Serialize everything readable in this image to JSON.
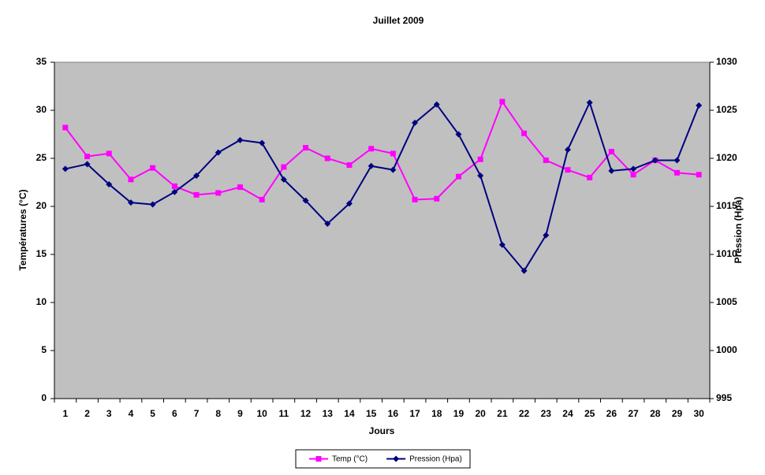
{
  "chart_data": {
    "type": "line",
    "title": "Juillet 2009",
    "x_label": "Jours",
    "y_label": "Températures (°C)",
    "y2_label": "Pression (Hpa)",
    "categories": [
      "1",
      "2",
      "3",
      "4",
      "5",
      "6",
      "7",
      "8",
      "9",
      "10",
      "11",
      "12",
      "13",
      "14",
      "15",
      "16",
      "17",
      "18",
      "19",
      "20",
      "21",
      "22",
      "23",
      "24",
      "25",
      "26",
      "27",
      "28",
      "29",
      "30"
    ],
    "ylim": [
      0,
      35
    ],
    "yticks": [
      0,
      5,
      10,
      15,
      20,
      25,
      30,
      35
    ],
    "y2lim": [
      995,
      1030
    ],
    "y2ticks": [
      995,
      1000,
      1005,
      1010,
      1015,
      1020,
      1025,
      1030
    ],
    "grid": false,
    "legend": "bottom",
    "plot_background": "#c0c0c0",
    "series": [
      {
        "name": "Temp (°C)",
        "color": "#ff00ff",
        "marker": "square",
        "values": [
          28.2,
          25.2,
          25.5,
          22.8,
          24.0,
          22.1,
          21.2,
          21.4,
          22.0,
          20.7,
          24.1,
          26.1,
          25.0,
          24.3,
          26.0,
          25.5,
          20.7,
          20.8,
          23.1,
          24.9,
          30.9,
          27.6,
          24.8,
          23.8,
          23.0,
          25.7,
          23.3,
          24.8,
          23.5,
          23.3
        ]
      },
      {
        "name": "Pression (Hpa)",
        "color": "#000080",
        "marker": "diamond",
        "axis": "y2",
        "values": [
          1018.9,
          1019.4,
          1017.3,
          1015.4,
          1015.2,
          1016.5,
          1018.2,
          1020.6,
          1021.9,
          1021.6,
          1017.8,
          1015.6,
          1013.2,
          1015.3,
          1019.2,
          1018.8,
          1023.7,
          1025.6,
          1022.5,
          1018.2,
          1011.0,
          1008.3,
          1012.0,
          1020.9,
          1025.8,
          1018.7,
          1018.9,
          1019.8,
          1019.8,
          1025.5
        ]
      }
    ]
  }
}
